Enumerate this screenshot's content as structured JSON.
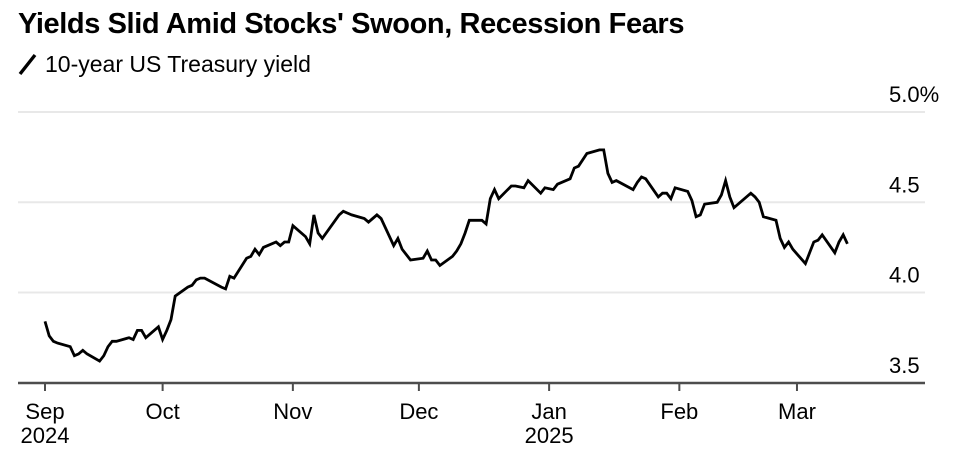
{
  "header": {
    "title": "Yields Slid Amid Stocks' Swoon, Recession Fears",
    "legend": {
      "label": "10-year US Treasury yield",
      "icon": "diagonal-line-stroke",
      "swatch_color": "#000000"
    }
  },
  "colors": {
    "background": "#ffffff",
    "series_line": "#000000",
    "gridline": "#e8e8e8",
    "axis_line": "#4d4d4d",
    "text": "#000000"
  },
  "chart_data": {
    "type": "line",
    "title": "Yields Slid Amid Stocks' Swoon, Recession Fears",
    "series": [
      {
        "name": "10-year US Treasury yield",
        "unit": "%",
        "points": [
          [
            "2024-09-03",
            3.84
          ],
          [
            "2024-09-04",
            3.76
          ],
          [
            "2024-09-05",
            3.73
          ],
          [
            "2024-09-06",
            3.72
          ],
          [
            "2024-09-09",
            3.7
          ],
          [
            "2024-09-10",
            3.65
          ],
          [
            "2024-09-11",
            3.66
          ],
          [
            "2024-09-12",
            3.68
          ],
          [
            "2024-09-13",
            3.66
          ],
          [
            "2024-09-16",
            3.62
          ],
          [
            "2024-09-17",
            3.65
          ],
          [
            "2024-09-18",
            3.7
          ],
          [
            "2024-09-19",
            3.73
          ],
          [
            "2024-09-20",
            3.73
          ],
          [
            "2024-09-23",
            3.75
          ],
          [
            "2024-09-24",
            3.74
          ],
          [
            "2024-09-25",
            3.79
          ],
          [
            "2024-09-26",
            3.79
          ],
          [
            "2024-09-27",
            3.75
          ],
          [
            "2024-09-30",
            3.81
          ],
          [
            "2024-10-01",
            3.74
          ],
          [
            "2024-10-02",
            3.79
          ],
          [
            "2024-10-03",
            3.85
          ],
          [
            "2024-10-04",
            3.98
          ],
          [
            "2024-10-07",
            4.03
          ],
          [
            "2024-10-08",
            4.04
          ],
          [
            "2024-10-09",
            4.07
          ],
          [
            "2024-10-10",
            4.08
          ],
          [
            "2024-10-11",
            4.08
          ],
          [
            "2024-10-15",
            4.03
          ],
          [
            "2024-10-16",
            4.02
          ],
          [
            "2024-10-17",
            4.09
          ],
          [
            "2024-10-18",
            4.08
          ],
          [
            "2024-10-21",
            4.19
          ],
          [
            "2024-10-22",
            4.2
          ],
          [
            "2024-10-23",
            4.24
          ],
          [
            "2024-10-24",
            4.21
          ],
          [
            "2024-10-25",
            4.25
          ],
          [
            "2024-10-28",
            4.28
          ],
          [
            "2024-10-29",
            4.26
          ],
          [
            "2024-10-30",
            4.28
          ],
          [
            "2024-10-31",
            4.28
          ],
          [
            "2024-11-01",
            4.37
          ],
          [
            "2024-11-04",
            4.31
          ],
          [
            "2024-11-05",
            4.27
          ],
          [
            "2024-11-06",
            4.43
          ],
          [
            "2024-11-07",
            4.33
          ],
          [
            "2024-11-08",
            4.3
          ],
          [
            "2024-11-12",
            4.43
          ],
          [
            "2024-11-13",
            4.45
          ],
          [
            "2024-11-14",
            4.44
          ],
          [
            "2024-11-15",
            4.43
          ],
          [
            "2024-11-18",
            4.41
          ],
          [
            "2024-11-19",
            4.39
          ],
          [
            "2024-11-20",
            4.41
          ],
          [
            "2024-11-21",
            4.43
          ],
          [
            "2024-11-22",
            4.41
          ],
          [
            "2024-11-25",
            4.26
          ],
          [
            "2024-11-26",
            4.3
          ],
          [
            "2024-11-27",
            4.24
          ],
          [
            "2024-11-29",
            4.18
          ],
          [
            "2024-12-02",
            4.19
          ],
          [
            "2024-12-03",
            4.23
          ],
          [
            "2024-12-04",
            4.18
          ],
          [
            "2024-12-05",
            4.18
          ],
          [
            "2024-12-06",
            4.15
          ],
          [
            "2024-12-09",
            4.2
          ],
          [
            "2024-12-10",
            4.23
          ],
          [
            "2024-12-11",
            4.27
          ],
          [
            "2024-12-12",
            4.33
          ],
          [
            "2024-12-13",
            4.4
          ],
          [
            "2024-12-16",
            4.4
          ],
          [
            "2024-12-17",
            4.38
          ],
          [
            "2024-12-18",
            4.52
          ],
          [
            "2024-12-19",
            4.57
          ],
          [
            "2024-12-20",
            4.52
          ],
          [
            "2024-12-23",
            4.59
          ],
          [
            "2024-12-24",
            4.59
          ],
          [
            "2024-12-26",
            4.58
          ],
          [
            "2024-12-27",
            4.62
          ],
          [
            "2024-12-30",
            4.55
          ],
          [
            "2024-12-31",
            4.58
          ],
          [
            "2025-01-02",
            4.57
          ],
          [
            "2025-01-03",
            4.6
          ],
          [
            "2025-01-06",
            4.63
          ],
          [
            "2025-01-07",
            4.69
          ],
          [
            "2025-01-08",
            4.7
          ],
          [
            "2025-01-10",
            4.77
          ],
          [
            "2025-01-13",
            4.79
          ],
          [
            "2025-01-14",
            4.79
          ],
          [
            "2025-01-15",
            4.66
          ],
          [
            "2025-01-16",
            4.61
          ],
          [
            "2025-01-17",
            4.62
          ],
          [
            "2025-01-21",
            4.57
          ],
          [
            "2025-01-22",
            4.61
          ],
          [
            "2025-01-23",
            4.64
          ],
          [
            "2025-01-24",
            4.63
          ],
          [
            "2025-01-27",
            4.53
          ],
          [
            "2025-01-28",
            4.55
          ],
          [
            "2025-01-29",
            4.55
          ],
          [
            "2025-01-30",
            4.52
          ],
          [
            "2025-01-31",
            4.58
          ],
          [
            "2025-02-03",
            4.56
          ],
          [
            "2025-02-04",
            4.51
          ],
          [
            "2025-02-05",
            4.42
          ],
          [
            "2025-02-06",
            4.43
          ],
          [
            "2025-02-07",
            4.49
          ],
          [
            "2025-02-10",
            4.5
          ],
          [
            "2025-02-11",
            4.54
          ],
          [
            "2025-02-12",
            4.62
          ],
          [
            "2025-02-13",
            4.53
          ],
          [
            "2025-02-14",
            4.47
          ],
          [
            "2025-02-18",
            4.55
          ],
          [
            "2025-02-19",
            4.53
          ],
          [
            "2025-02-20",
            4.5
          ],
          [
            "2025-02-21",
            4.42
          ],
          [
            "2025-02-24",
            4.4
          ],
          [
            "2025-02-25",
            4.3
          ],
          [
            "2025-02-26",
            4.25
          ],
          [
            "2025-02-27",
            4.28
          ],
          [
            "2025-02-28",
            4.24
          ],
          [
            "2025-03-03",
            4.16
          ],
          [
            "2025-03-04",
            4.22
          ],
          [
            "2025-03-05",
            4.28
          ],
          [
            "2025-03-06",
            4.29
          ],
          [
            "2025-03-07",
            4.32
          ],
          [
            "2025-03-10",
            4.22
          ],
          [
            "2025-03-11",
            4.28
          ],
          [
            "2025-03-12",
            4.32
          ],
          [
            "2025-03-13",
            4.27
          ]
        ]
      }
    ],
    "ylim": [
      3.5,
      5.0
    ],
    "x_domain": [
      "2024-09-03",
      "2025-03-31"
    ],
    "y_ticks": [
      {
        "value": 5.0,
        "label": "5.0%"
      },
      {
        "value": 4.5,
        "label": "4.5"
      },
      {
        "value": 4.0,
        "label": "4.0"
      },
      {
        "value": 3.5,
        "label": "3.5"
      }
    ],
    "x_ticks": [
      {
        "date": "2024-09-03",
        "label": "Sep",
        "sublabel": "2024"
      },
      {
        "date": "2024-10-01",
        "label": "Oct",
        "sublabel": ""
      },
      {
        "date": "2024-11-01",
        "label": "Nov",
        "sublabel": ""
      },
      {
        "date": "2024-12-01",
        "label": "Dec",
        "sublabel": ""
      },
      {
        "date": "2025-01-01",
        "label": "Jan",
        "sublabel": "2025"
      },
      {
        "date": "2025-02-01",
        "label": "Feb",
        "sublabel": ""
      },
      {
        "date": "2025-03-01",
        "label": "Mar",
        "sublabel": ""
      }
    ],
    "layout_hints": {
      "grid": "horizontal-only",
      "y_axis_side": "right",
      "y_labels_above_gridlines": true,
      "legend_position": "top-left",
      "line_style": "solid-black"
    }
  }
}
